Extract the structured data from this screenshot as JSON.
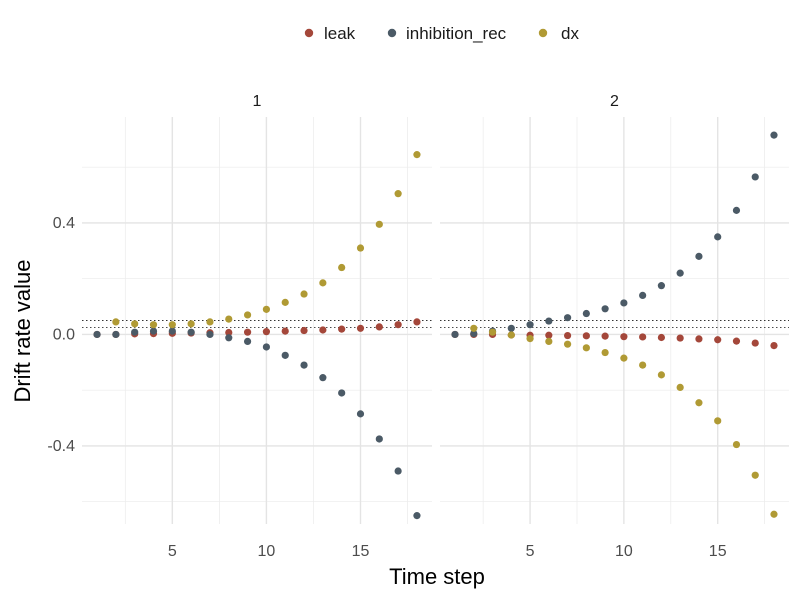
{
  "chart_data": {
    "type": "scatter",
    "xlabel": "Time step",
    "ylabel": "Drift rate value",
    "legend_position": "top",
    "grid": true,
    "xlim": [
      0.2,
      18.8
    ],
    "ylim": [
      -0.68,
      0.78
    ],
    "x_ticks": [
      5,
      10,
      15
    ],
    "x_tick_labels": [
      "5",
      "10",
      "15"
    ],
    "y_ticks": [
      -0.4,
      0.0,
      0.4
    ],
    "y_tick_labels": [
      "-0.4",
      "0.0",
      "0.4"
    ],
    "reference_lines": [
      0.025,
      0.05
    ],
    "legend": [
      {
        "name": "leak",
        "color": "#A4473A"
      },
      {
        "name": "inhibition_rec",
        "color": "#4B5A66"
      },
      {
        "name": "dx",
        "color": "#B09A34"
      }
    ],
    "panels": [
      {
        "label": "1",
        "series": [
          {
            "name": "leak",
            "color": "#A4473A",
            "x": [
              1,
              2,
              3,
              4,
              5,
              6,
              7,
              8,
              9,
              10,
              11,
              12,
              13,
              14,
              15,
              16,
              17,
              18
            ],
            "y": [
              0.0,
              0.0,
              0.002,
              0.003,
              0.004,
              0.005,
              0.006,
              0.007,
              0.008,
              0.01,
              0.012,
              0.014,
              0.016,
              0.019,
              0.022,
              0.027,
              0.035,
              0.045
            ]
          },
          {
            "name": "inhibition_rec",
            "color": "#4B5A66",
            "x": [
              1,
              2,
              3,
              4,
              5,
              6,
              7,
              8,
              9,
              10,
              11,
              12,
              13,
              14,
              15,
              16,
              17,
              18
            ],
            "y": [
              0.0,
              0.0,
              0.008,
              0.012,
              0.012,
              0.008,
              0.0,
              -0.012,
              -0.025,
              -0.045,
              -0.075,
              -0.11,
              -0.155,
              -0.21,
              -0.285,
              -0.375,
              -0.49,
              -0.65
            ]
          },
          {
            "name": "dx",
            "color": "#B09A34",
            "x": [
              2,
              3,
              4,
              5,
              6,
              7,
              8,
              9,
              10,
              11,
              12,
              13,
              14,
              15,
              16,
              17,
              18
            ],
            "y": [
              0.045,
              0.038,
              0.035,
              0.035,
              0.038,
              0.045,
              0.055,
              0.07,
              0.09,
              0.115,
              0.145,
              0.185,
              0.24,
              0.31,
              0.395,
              0.505,
              0.645
            ]
          }
        ]
      },
      {
        "label": "2",
        "series": [
          {
            "name": "leak",
            "color": "#A4473A",
            "x": [
              1,
              2,
              3,
              4,
              5,
              6,
              7,
              8,
              9,
              10,
              11,
              12,
              13,
              14,
              15,
              16,
              17,
              18
            ],
            "y": [
              0.0,
              0.0,
              0.0,
              -0.002,
              -0.003,
              -0.003,
              -0.004,
              -0.005,
              -0.006,
              -0.008,
              -0.009,
              -0.011,
              -0.013,
              -0.016,
              -0.019,
              -0.024,
              -0.031,
              -0.04
            ]
          },
          {
            "name": "inhibition_rec",
            "color": "#4B5A66",
            "x": [
              1,
              2,
              3,
              4,
              5,
              6,
              7,
              8,
              9,
              10,
              11,
              12,
              13,
              14,
              15,
              16,
              17,
              18
            ],
            "y": [
              0.0,
              0.003,
              0.012,
              0.022,
              0.035,
              0.048,
              0.06,
              0.075,
              0.092,
              0.113,
              0.14,
              0.175,
              0.22,
              0.28,
              0.35,
              0.445,
              0.565,
              0.715
            ]
          },
          {
            "name": "dx",
            "color": "#B09A34",
            "x": [
              2,
              3,
              4,
              5,
              6,
              7,
              8,
              9,
              10,
              11,
              12,
              13,
              14,
              15,
              16,
              17,
              18
            ],
            "y": [
              0.022,
              0.008,
              -0.002,
              -0.015,
              -0.025,
              -0.035,
              -0.048,
              -0.065,
              -0.085,
              -0.11,
              -0.145,
              -0.19,
              -0.245,
              -0.31,
              -0.395,
              -0.505,
              -0.645
            ]
          }
        ]
      }
    ]
  }
}
